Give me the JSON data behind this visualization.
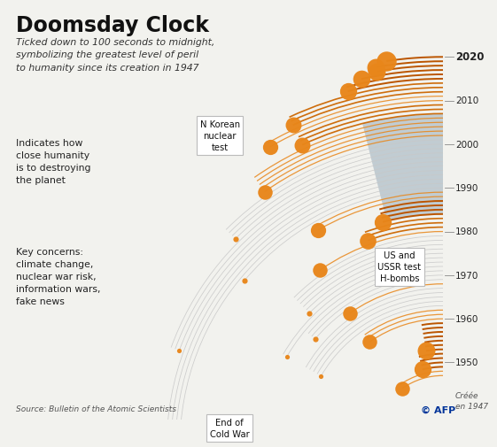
{
  "title": "Doomsday Clock",
  "subtitle": "Ticked down to 100 seconds to midnight,\nsymbolizing the greatest level of peril\nto humanity since its creation in 1947",
  "source": "Source: Bulletin of the Atomic Scientists",
  "bg_color": "#f2f2ee",
  "title_color": "#111111",
  "orange_color": "#E8861A",
  "arc_gray_color": "#d0d0d0",
  "arc_orange_color": "#CC6600",
  "year_labels": [
    1950,
    1960,
    1970,
    1980,
    1990,
    2000,
    2010,
    2020
  ],
  "doomsday_data": [
    {
      "year": 1947,
      "minutes": 7
    },
    {
      "year": 1949,
      "minutes": 3
    },
    {
      "year": 1953,
      "minutes": 2
    },
    {
      "year": 1960,
      "minutes": 7
    },
    {
      "year": 1963,
      "minutes": 12
    },
    {
      "year": 1968,
      "minutes": 7
    },
    {
      "year": 1969,
      "minutes": 10
    },
    {
      "year": 1972,
      "minutes": 12
    },
    {
      "year": 1974,
      "minutes": 9
    },
    {
      "year": 1980,
      "minutes": 7
    },
    {
      "year": 1981,
      "minutes": 4
    },
    {
      "year": 1984,
      "minutes": 3
    },
    {
      "year": 1988,
      "minutes": 6
    },
    {
      "year": 1990,
      "minutes": 10
    },
    {
      "year": 1991,
      "minutes": 17
    },
    {
      "year": 1995,
      "minutes": 14
    },
    {
      "year": 1998,
      "minutes": 9
    },
    {
      "year": 2002,
      "minutes": 7
    },
    {
      "year": 2007,
      "minutes": 5
    },
    {
      "year": 2010,
      "minutes": 6
    },
    {
      "year": 2012,
      "minutes": 5
    },
    {
      "year": 2015,
      "minutes": 3
    },
    {
      "year": 2017,
      "minutes": 2.5
    },
    {
      "year": 2018,
      "minutes": 2
    },
    {
      "year": 2019,
      "minutes": 2
    },
    {
      "year": 2020,
      "minutes": 1.667
    }
  ]
}
